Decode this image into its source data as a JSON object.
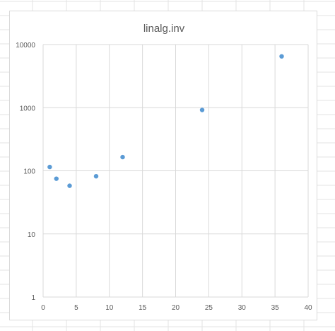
{
  "chart_data": {
    "type": "scatter",
    "title": "linalg.inv",
    "xlabel": "",
    "ylabel": "",
    "x": [
      1,
      2,
      4,
      8,
      12,
      24,
      36
    ],
    "y": [
      115,
      75,
      58,
      82,
      165,
      920,
      6500
    ],
    "xlim": [
      0,
      40
    ],
    "ylim": [
      1,
      10000
    ],
    "yscale": "log",
    "x_ticks": [
      0,
      5,
      10,
      15,
      20,
      25,
      30,
      35,
      40
    ],
    "x_tick_labels": [
      "0",
      "5",
      "10",
      "15",
      "20",
      "25",
      "30",
      "35",
      "40"
    ],
    "y_ticks": [
      1,
      10,
      100,
      1000,
      10000
    ],
    "y_tick_labels": [
      "1",
      "10",
      "100",
      "1000",
      "10000"
    ],
    "grid": true,
    "legend": "none",
    "marker_color": "#5b9bd5",
    "gridline_color": "#d9d9d9",
    "text_color": "#595959"
  }
}
